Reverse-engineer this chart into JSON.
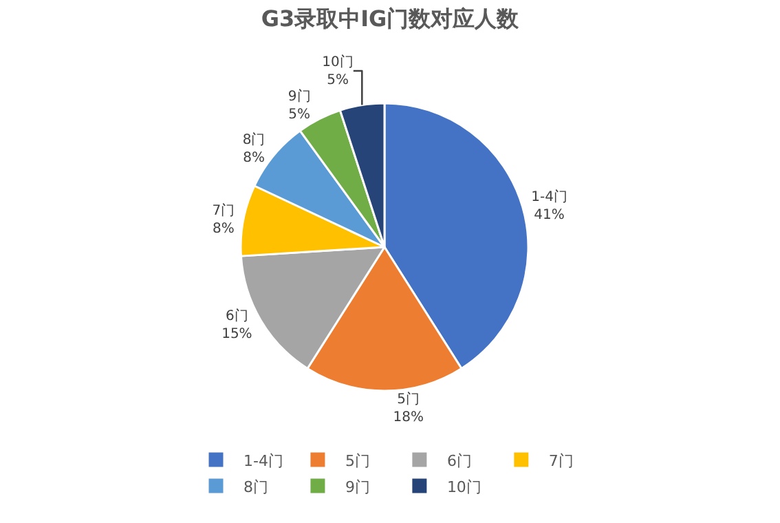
{
  "chart_data": {
    "type": "pie",
    "title": "G3录取中IG门数对应人数",
    "categories": [
      "1-4门",
      "5门",
      "6门",
      "7门",
      "8门",
      "9门",
      "10门"
    ],
    "values": [
      41,
      18,
      15,
      8,
      8,
      5,
      5
    ],
    "value_labels": [
      "41%",
      "18%",
      "15%",
      "8%",
      "8%",
      "5%",
      "5%"
    ],
    "colors": [
      "#4472c4",
      "#ed7d31",
      "#a5a5a5",
      "#ffc000",
      "#5b9bd5",
      "#70ad47",
      "#264478"
    ],
    "legend": "bottom"
  }
}
